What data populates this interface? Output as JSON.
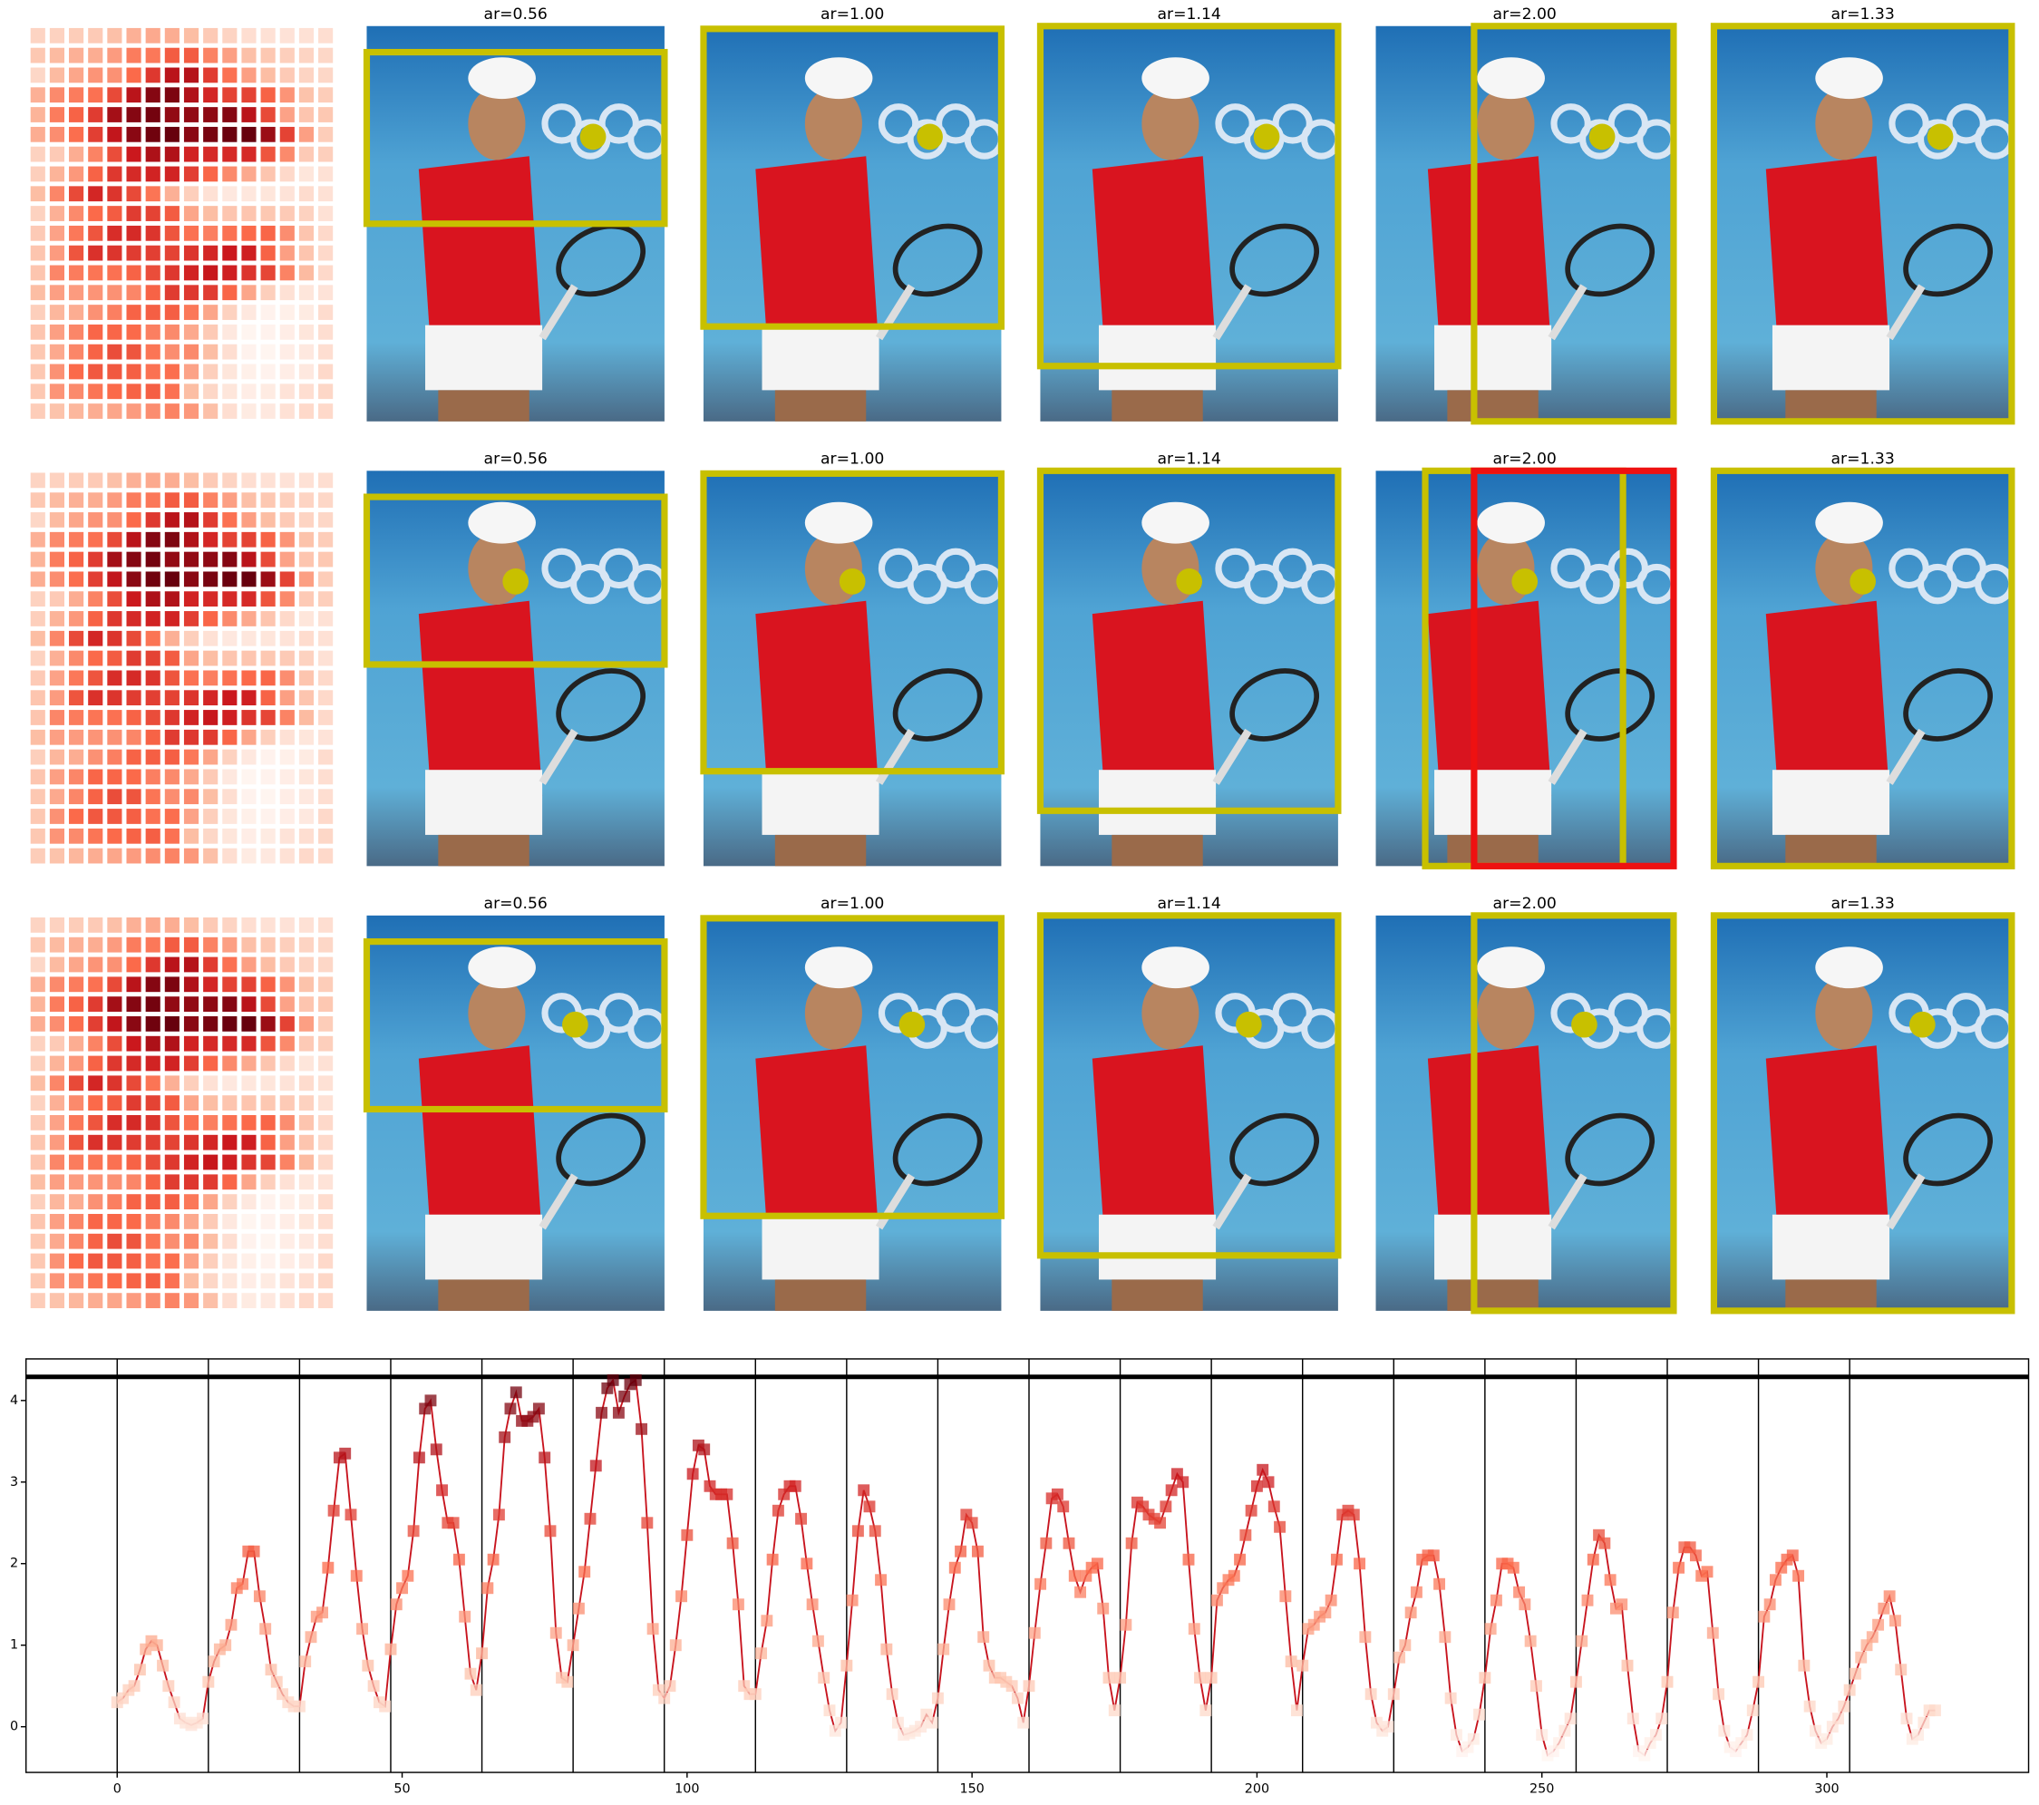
{
  "panels": {
    "rows": [
      {
        "titles": [
          "ar=0.56",
          "ar=1.00",
          "ar=1.14",
          "ar=2.00",
          "ar=1.33"
        ]
      },
      {
        "titles": [
          "ar=0.56",
          "ar=1.00",
          "ar=1.14",
          "ar=2.00",
          "ar=1.33"
        ]
      },
      {
        "titles": [
          "ar=0.56",
          "ar=1.00",
          "ar=1.14",
          "ar=2.00",
          "ar=1.33"
        ]
      }
    ]
  },
  "chart_data": {
    "type": "line",
    "x": [
      0,
      1,
      2,
      3,
      4,
      5,
      6,
      7,
      8,
      9,
      10,
      11,
      12,
      13,
      14,
      15,
      16,
      17,
      18,
      19,
      20,
      21,
      22,
      23,
      24,
      25,
      26,
      27,
      28,
      29,
      30,
      31,
      32,
      33,
      34,
      35,
      36,
      37,
      38,
      39,
      40,
      41,
      42,
      43,
      44,
      45,
      46,
      47,
      48,
      49,
      50,
      51,
      52,
      53,
      54,
      55,
      56,
      57,
      58,
      59,
      60,
      61,
      62,
      63,
      64,
      65,
      66,
      67,
      68,
      69,
      70,
      71,
      72,
      73,
      74,
      75,
      76,
      77,
      78,
      79,
      80,
      81,
      82,
      83,
      84,
      85,
      86,
      87,
      88,
      89,
      90,
      91,
      92,
      93,
      94,
      95,
      96,
      97,
      98,
      99,
      100,
      101,
      102,
      103,
      104,
      105,
      106,
      107,
      108,
      109,
      110,
      111,
      112,
      113,
      114,
      115,
      116,
      117,
      118,
      119,
      120,
      121,
      122,
      123,
      124,
      125,
      126,
      127,
      128,
      129,
      130,
      131,
      132,
      133,
      134,
      135,
      136,
      137,
      138,
      139,
      140,
      141,
      142,
      143,
      144,
      145,
      146,
      147,
      148,
      149,
      150,
      151,
      152,
      153,
      154,
      155,
      156,
      157,
      158,
      159,
      160,
      161,
      162,
      163,
      164,
      165,
      166,
      167,
      168,
      169,
      170,
      171,
      172,
      173,
      174,
      175,
      176,
      177,
      178,
      179,
      180,
      181,
      182,
      183,
      184,
      185,
      186,
      187,
      188,
      189,
      190,
      191,
      192,
      193,
      194,
      195,
      196,
      197,
      198,
      199,
      200,
      201,
      202,
      203,
      204,
      205,
      206,
      207,
      208,
      209,
      210,
      211,
      212,
      213,
      214,
      215,
      216,
      217,
      218,
      219,
      220,
      221,
      222,
      223,
      224,
      225,
      226,
      227,
      228,
      229,
      230,
      231,
      232,
      233,
      234,
      235,
      236,
      237,
      238,
      239,
      240,
      241,
      242,
      243,
      244,
      245,
      246,
      247,
      248,
      249,
      250,
      251,
      252,
      253,
      254,
      255,
      256,
      257,
      258,
      259,
      260,
      261,
      262,
      263,
      264,
      265,
      266,
      267,
      268,
      269,
      270,
      271,
      272,
      273,
      274,
      275,
      276,
      277,
      278,
      279,
      280,
      281,
      282,
      283,
      284,
      285,
      286,
      287,
      288,
      289,
      290,
      291,
      292,
      293,
      294,
      295,
      296,
      297,
      298,
      299,
      300,
      301,
      302,
      303,
      304,
      305,
      306,
      307,
      308,
      309,
      310,
      311,
      312,
      313,
      314,
      315,
      316,
      317,
      318,
      319
    ],
    "series": [
      {
        "color": "#c8141e",
        "values": [
          0.3,
          0.35,
          0.45,
          0.5,
          0.7,
          0.95,
          1.05,
          1.0,
          0.75,
          0.5,
          0.3,
          0.1,
          0.05,
          0.02,
          0.05,
          0.1,
          0.55,
          0.8,
          0.95,
          1.0,
          1.25,
          1.7,
          1.75,
          2.15,
          2.15,
          1.6,
          1.2,
          0.7,
          0.55,
          0.4,
          0.3,
          0.25,
          0.25,
          0.8,
          1.1,
          1.35,
          1.4,
          1.95,
          2.65,
          3.3,
          3.35,
          2.6,
          1.85,
          1.2,
          0.75,
          0.5,
          0.3,
          0.25,
          0.95,
          1.5,
          1.7,
          1.85,
          2.4,
          3.3,
          3.9,
          4.0,
          3.4,
          2.9,
          2.5,
          2.5,
          2.05,
          1.35,
          0.65,
          0.45,
          0.9,
          1.7,
          2.05,
          2.6,
          3.55,
          3.9,
          4.1,
          3.75,
          3.75,
          3.8,
          3.9,
          3.3,
          2.4,
          1.15,
          0.6,
          0.55,
          1.0,
          1.45,
          1.9,
          2.55,
          3.2,
          3.85,
          4.15,
          4.25,
          3.85,
          4.05,
          4.2,
          4.25,
          3.65,
          2.5,
          1.2,
          0.45,
          0.35,
          0.5,
          1.0,
          1.6,
          2.35,
          3.1,
          3.45,
          3.4,
          2.95,
          2.85,
          2.85,
          2.85,
          2.25,
          1.5,
          0.5,
          0.4,
          0.4,
          0.9,
          1.3,
          2.05,
          2.65,
          2.85,
          2.95,
          2.95,
          2.55,
          2.0,
          1.5,
          1.05,
          0.6,
          0.2,
          -0.05,
          0.05,
          0.75,
          1.55,
          2.4,
          2.9,
          2.7,
          2.4,
          1.8,
          0.95,
          0.4,
          0.05,
          -0.1,
          -0.08,
          -0.05,
          0.0,
          0.15,
          0.05,
          0.35,
          0.95,
          1.5,
          1.95,
          2.15,
          2.6,
          2.5,
          2.15,
          1.1,
          0.75,
          0.6,
          0.6,
          0.55,
          0.5,
          0.35,
          0.05,
          0.5,
          1.15,
          1.75,
          2.25,
          2.8,
          2.85,
          2.7,
          2.25,
          1.85,
          1.65,
          1.85,
          1.95,
          2.0,
          1.45,
          0.6,
          0.2,
          0.6,
          1.25,
          2.25,
          2.75,
          2.7,
          2.6,
          2.55,
          2.5,
          2.7,
          2.9,
          3.1,
          3.0,
          2.05,
          1.2,
          0.6,
          0.2,
          0.6,
          1.55,
          1.7,
          1.8,
          1.85,
          2.05,
          2.35,
          2.65,
          2.95,
          3.15,
          3.0,
          2.7,
          2.45,
          1.6,
          0.8,
          0.2,
          0.75,
          1.2,
          1.25,
          1.35,
          1.4,
          1.55,
          2.05,
          2.6,
          2.65,
          2.6,
          2.0,
          1.1,
          0.4,
          0.05,
          -0.05,
          0.0,
          0.4,
          0.85,
          1.0,
          1.4,
          1.65,
          2.05,
          2.1,
          2.1,
          1.75,
          1.1,
          0.35,
          -0.1,
          -0.3,
          -0.25,
          -0.15,
          0.15,
          0.6,
          1.2,
          1.55,
          2.0,
          2.0,
          1.95,
          1.65,
          1.5,
          1.05,
          0.5,
          -0.1,
          -0.35,
          -0.3,
          -0.2,
          -0.05,
          0.1,
          0.55,
          1.05,
          1.55,
          2.05,
          2.35,
          2.25,
          1.8,
          1.45,
          1.5,
          0.75,
          0.1,
          -0.3,
          -0.35,
          -0.2,
          -0.1,
          0.1,
          0.55,
          1.4,
          1.95,
          2.2,
          2.2,
          2.1,
          1.85,
          1.9,
          1.15,
          0.4,
          -0.05,
          -0.25,
          -0.3,
          -0.2,
          -0.1,
          0.2,
          0.55,
          1.35,
          1.5,
          1.8,
          1.95,
          2.05,
          2.1,
          1.85,
          0.75,
          0.25,
          -0.05,
          -0.2,
          -0.15,
          0.0,
          0.1,
          0.25,
          0.45,
          0.65,
          0.85,
          1.0,
          1.1,
          1.25,
          1.45,
          1.6,
          1.3,
          0.7,
          0.1,
          -0.15,
          -0.1,
          0.05,
          0.2,
          0.2
        ]
      }
    ],
    "xlim": [
      -16,
      335.4
    ],
    "ylim": [
      -0.56,
      4.51
    ],
    "xticks": [
      0,
      50,
      100,
      150,
      200,
      250,
      300
    ],
    "yticks": [
      0,
      1,
      2,
      3,
      4
    ],
    "vlines": [
      0,
      16,
      32,
      48,
      64,
      80,
      96,
      112,
      128,
      144,
      160,
      176,
      192,
      208,
      224,
      240,
      256,
      272,
      288,
      304
    ],
    "hline": 4.29,
    "grid": false
  }
}
